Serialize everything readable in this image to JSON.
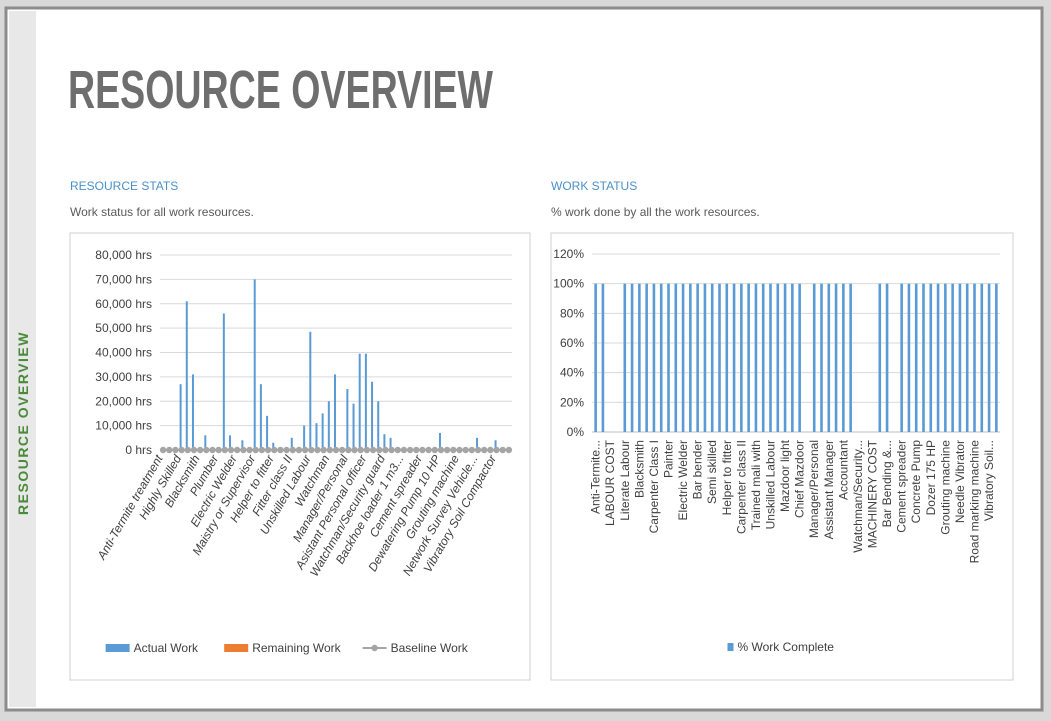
{
  "page": {
    "title": "RESOURCE OVERVIEW",
    "side_label": "RESOURCE OVERVIEW"
  },
  "chart_data": [
    {
      "type": "bar",
      "title": "RESOURCE STATS",
      "subtitle": "Work status for all work resources.",
      "categories": [
        "Anti-Termite treatment",
        null,
        null,
        "Highly Skilled",
        null,
        null,
        "Blacksmith",
        null,
        null,
        "Plumber",
        null,
        null,
        "Electric Welder",
        null,
        null,
        "Maistry or Supervisor",
        null,
        null,
        "Helper to fitter",
        null,
        null,
        "Fitter class II",
        null,
        null,
        "Unskilled Labour",
        null,
        null,
        "Watchman",
        null,
        null,
        "Manager/Personal",
        null,
        null,
        "Asistant Personal officer",
        null,
        null,
        "Watchman/Security guard",
        null,
        null,
        "Backhoe loader 1 m3...",
        null,
        null,
        "Cement spreader",
        null,
        null,
        "Dewatering Pump 10 HP",
        null,
        null,
        "Grouting machine",
        null,
        null,
        "Network Survey Vehicle...",
        null,
        null,
        "Vibratory Soil Compactor",
        null,
        null
      ],
      "series": [
        {
          "name": "Actual Work",
          "type": "bar",
          "color": "#5b9bd5",
          "values": [
            0,
            0,
            0,
            27000,
            61000,
            31000,
            0,
            6000,
            0,
            0,
            56000,
            6000,
            0,
            4000,
            0,
            70000,
            27000,
            14000,
            3000,
            0,
            0,
            5000,
            0,
            10000,
            48500,
            11000,
            15000,
            20000,
            31000,
            0,
            25000,
            19000,
            39500,
            39500,
            28000,
            20000,
            6500,
            5000,
            0,
            0,
            0,
            0,
            0,
            0,
            0,
            7000,
            0,
            0,
            0,
            0,
            0,
            5000,
            0,
            0,
            4000,
            0,
            0
          ]
        },
        {
          "name": "Remaining Work",
          "type": "bar",
          "color": "#ed7d31",
          "values": [
            0,
            0,
            0,
            0,
            0,
            0,
            0,
            0,
            0,
            0,
            0,
            0,
            0,
            0,
            0,
            0,
            0,
            0,
            0,
            0,
            0,
            0,
            0,
            0,
            0,
            0,
            0,
            0,
            0,
            0,
            0,
            0,
            0,
            0,
            0,
            0,
            0,
            0,
            0,
            0,
            0,
            0,
            0,
            0,
            0,
            0,
            0,
            0,
            0,
            0,
            0,
            0,
            0,
            0,
            0,
            0,
            0
          ]
        },
        {
          "name": "Baseline Work",
          "type": "line",
          "color": "#a5a5a5",
          "values": [
            0,
            0,
            0,
            0,
            0,
            0,
            0,
            0,
            0,
            0,
            0,
            0,
            0,
            0,
            0,
            0,
            0,
            0,
            0,
            0,
            0,
            0,
            0,
            0,
            0,
            0,
            0,
            0,
            0,
            0,
            0,
            0,
            0,
            0,
            0,
            0,
            0,
            0,
            0,
            0,
            0,
            0,
            0,
            0,
            0,
            0,
            0,
            0,
            0,
            0,
            0,
            0,
            0,
            0,
            0,
            0,
            0
          ]
        }
      ],
      "ylim": [
        0,
        80000
      ],
      "yticks": [
        {
          "value": 0,
          "label": "0 hrs"
        },
        {
          "value": 10000,
          "label": "10,000 hrs"
        },
        {
          "value": 20000,
          "label": "20,000 hrs"
        },
        {
          "value": 30000,
          "label": "30,000 hrs"
        },
        {
          "value": 40000,
          "label": "40,000 hrs"
        },
        {
          "value": 50000,
          "label": "50,000 hrs"
        },
        {
          "value": 60000,
          "label": "60,000 hrs"
        },
        {
          "value": 70000,
          "label": "70,000 hrs"
        },
        {
          "value": 80000,
          "label": "80,000 hrs"
        }
      ],
      "grid": true,
      "legend": "bottom"
    },
    {
      "type": "bar",
      "title": "WORK STATUS",
      "subtitle": "% work done by all the work resources.",
      "categories": [
        "Anti-Termite...",
        null,
        "LABOUR COST",
        null,
        "Literate Labour",
        null,
        "Blacksmith",
        null,
        "Carpenter Class I",
        null,
        "Painter",
        null,
        "Electric Welder",
        null,
        "Bar bender",
        null,
        "Semi skilled",
        null,
        "Helper to fitter",
        null,
        "Carpenter class II",
        null,
        "Trained mali with",
        null,
        "Unskilled Labour",
        null,
        "Mazdoor light",
        null,
        "Chief Mazdoor",
        null,
        "Manager/Personal",
        null,
        "Assistant Manager",
        null,
        "Accountant",
        null,
        "Watchman/Security...",
        null,
        "MACHINERY COST",
        null,
        "Bar Bending &...",
        null,
        "Cement spreader",
        null,
        "Concrete Pump",
        null,
        "Dozer 175 HP",
        null,
        "Grouting machine",
        null,
        "Needle Vibrator",
        null,
        "Road marking machine",
        null,
        "Vibratory Soil...",
        null
      ],
      "series": [
        {
          "name": "% Work Complete",
          "type": "bar",
          "color": "#5b9bd5",
          "values": [
            100,
            100,
            0,
            0,
            100,
            100,
            100,
            100,
            100,
            100,
            100,
            100,
            100,
            100,
            100,
            100,
            100,
            100,
            100,
            100,
            100,
            100,
            100,
            100,
            100,
            100,
            100,
            100,
            100,
            0,
            100,
            100,
            100,
            100,
            100,
            100,
            0,
            0,
            0,
            100,
            100,
            0,
            100,
            100,
            100,
            100,
            100,
            100,
            100,
            100,
            100,
            100,
            100,
            100,
            100,
            100
          ]
        }
      ],
      "ylim": [
        0,
        120
      ],
      "yticks": [
        {
          "value": 0,
          "label": "0%"
        },
        {
          "value": 20,
          "label": "20%"
        },
        {
          "value": 40,
          "label": "40%"
        },
        {
          "value": 60,
          "label": "60%"
        },
        {
          "value": 80,
          "label": "80%"
        },
        {
          "value": 100,
          "label": "100%"
        },
        {
          "value": 120,
          "label": "120%"
        }
      ],
      "grid": true,
      "legend": "bottom"
    }
  ]
}
